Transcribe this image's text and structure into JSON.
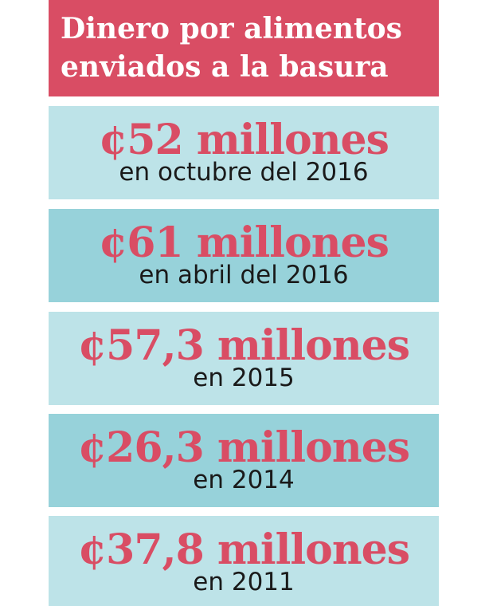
{
  "header": {
    "title_line1": "Dinero por alimentos",
    "title_line2": "enviados a la basura"
  },
  "items": [
    {
      "amount": "¢52 millones",
      "period": "en octubre del 2016"
    },
    {
      "amount": "¢61 millones",
      "period": "en abril del 2016"
    },
    {
      "amount": "¢57,3 millones",
      "period": "en 2015"
    },
    {
      "amount": "¢26,3 millones",
      "period": "en 2014"
    },
    {
      "amount": "¢37,8 millones",
      "period": "en 2011"
    }
  ],
  "colors": {
    "header_bg": "#d94d64",
    "amount_text": "#d94d64",
    "card_light": "#bde3e8",
    "card_dark": "#97d2da"
  }
}
